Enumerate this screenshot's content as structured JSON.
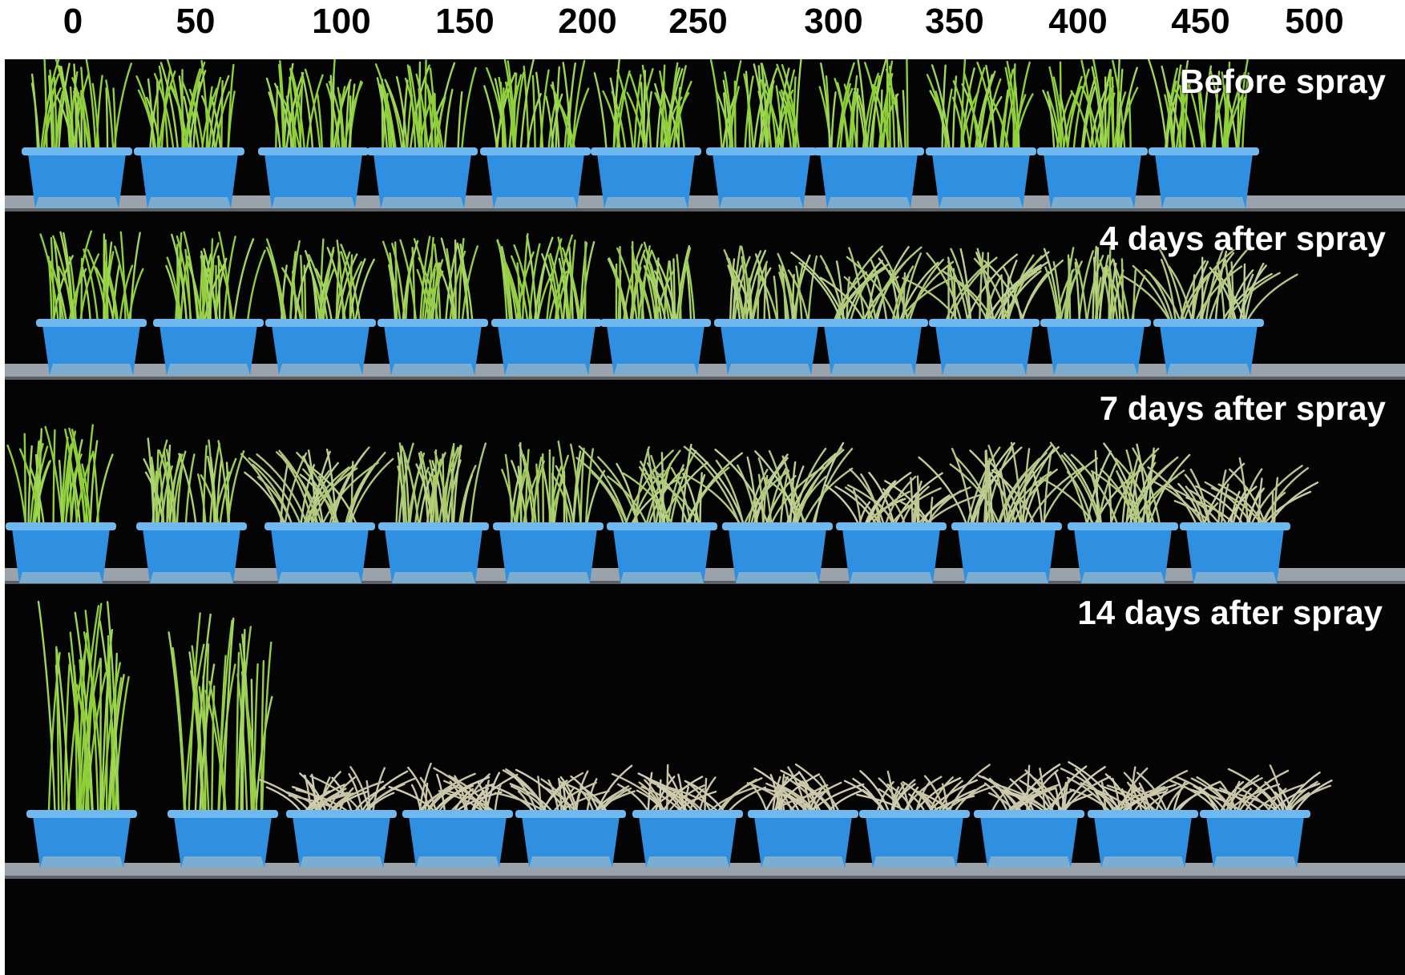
{
  "dose_labels": [
    "0",
    "50",
    "100",
    "150",
    "200",
    "250",
    "300",
    "350",
    "400",
    "450",
    "500"
  ],
  "rows": [
    {
      "label": "Before spray",
      "greenness": [
        1,
        1,
        1,
        1,
        1,
        1,
        1,
        1,
        1,
        1,
        1
      ]
    },
    {
      "label": "4 days after  spray",
      "greenness": [
        1,
        0.95,
        0.8,
        0.85,
        0.9,
        0.75,
        0.55,
        0.45,
        0.4,
        0.55,
        0.35
      ]
    },
    {
      "label": "7 days after  spray",
      "greenness": [
        1,
        0.7,
        0.4,
        0.55,
        0.65,
        0.45,
        0.35,
        0.2,
        0.3,
        0.35,
        0.2
      ]
    },
    {
      "label": "14 days after  spray",
      "greenness": [
        1,
        0.9,
        0,
        0,
        0,
        0,
        0,
        0,
        0,
        0,
        0
      ]
    }
  ],
  "colors": {
    "background": "#050404",
    "pot": "#2f8fe0",
    "pot_dark": "#1f6fc0",
    "pot_rim": "#6fb8f0",
    "shelf": "#9aa3ab",
    "grass_green": "#8fcf3a",
    "grass_dry": "#c8c4a6"
  }
}
